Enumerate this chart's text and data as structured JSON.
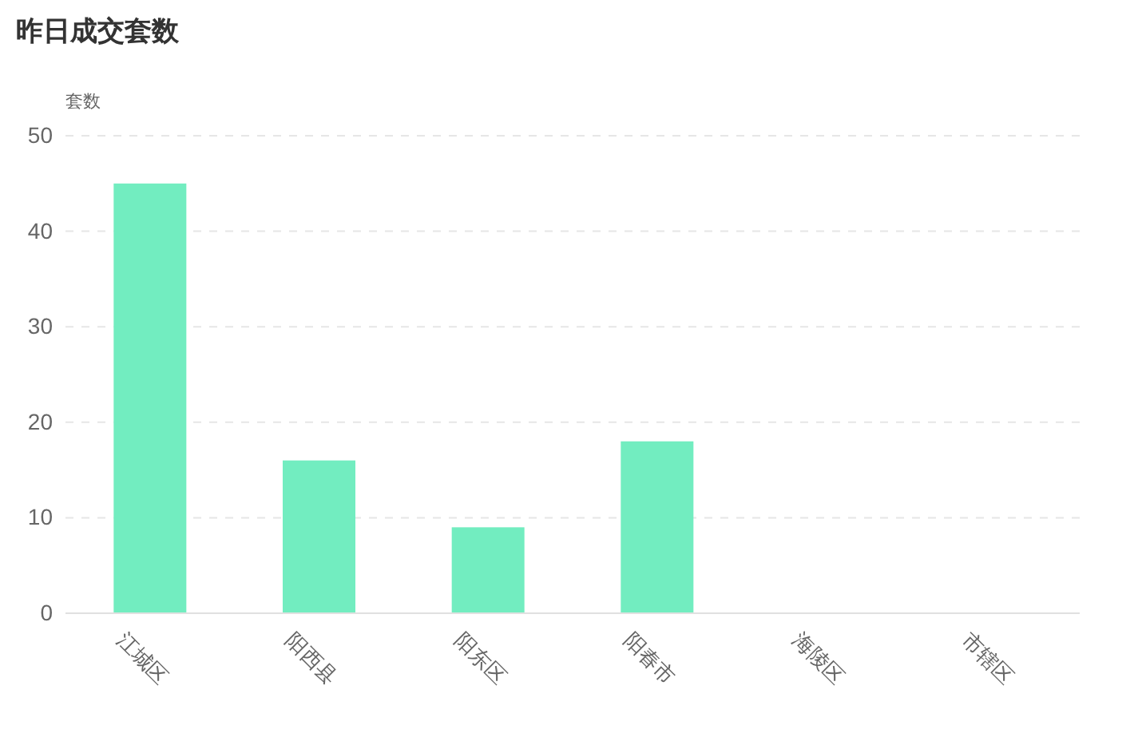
{
  "chart_data": {
    "type": "bar",
    "title": "昨日成交套数",
    "ylabel": "套数",
    "categories": [
      "江城区",
      "阳西县",
      "阳东区",
      "阳春市",
      "海陵区",
      "市辖区"
    ],
    "values": [
      45,
      16,
      9,
      18,
      0,
      0
    ],
    "color": "#72edc0",
    "ylim": [
      0,
      50
    ],
    "yticks": [
      0,
      10,
      20,
      30,
      40,
      50
    ],
    "grid": "y"
  }
}
